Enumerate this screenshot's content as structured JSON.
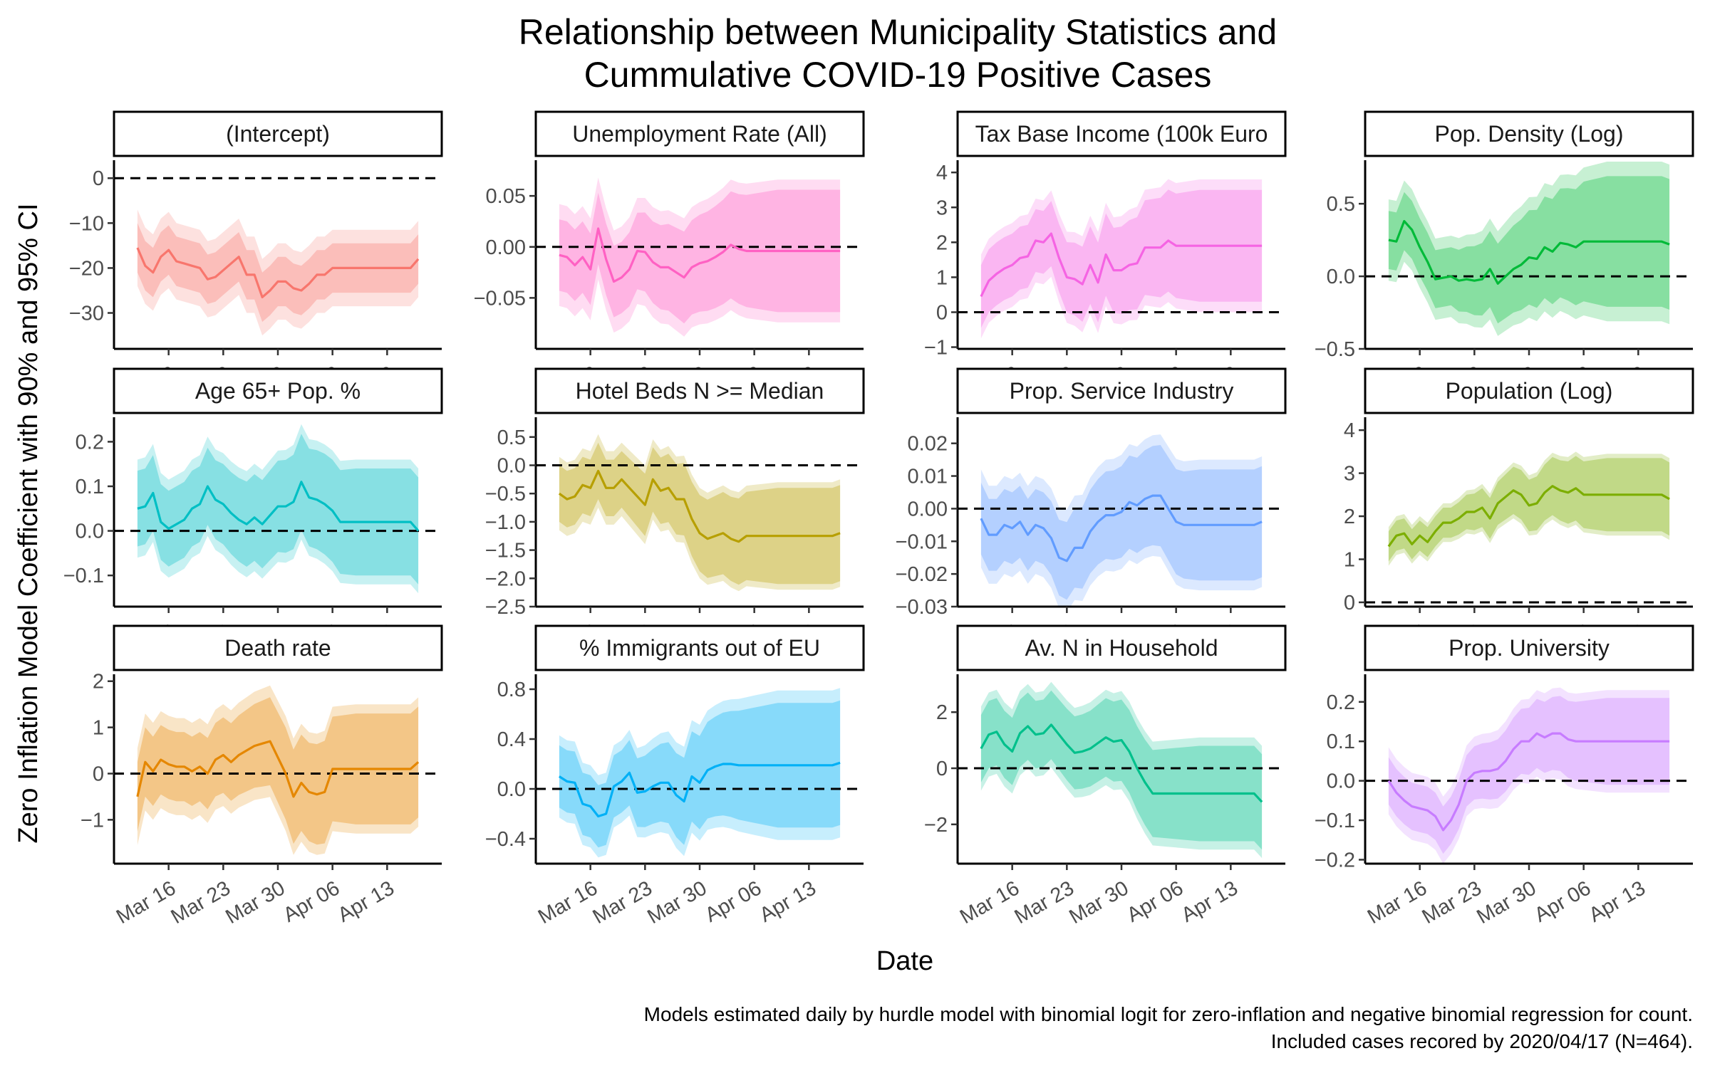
{
  "title_lines": [
    "Relationship between Municipality Statistics and",
    "Cummulative COVID-19 Positive Cases"
  ],
  "xlabel": "Date",
  "ylabel": "Zero Inflation Model Coefficient with 90% and 95% CI",
  "caption_lines": [
    "Models estimated daily by hurdle model with binomial logit for zero-inflation and negative binomial regression for count.",
    "Included cases recored by 2020/04/17 (N=464)."
  ],
  "chart_data": {
    "type": "line",
    "x_unit": "date (2020)",
    "x_ticks": [
      "Mar 16",
      "Mar 23",
      "Mar 30",
      "Apr 06",
      "Apr 13"
    ],
    "x_tick_dates": [
      "2020-03-16",
      "2020-03-23",
      "2020-03-30",
      "2020-04-06",
      "2020-04-13"
    ],
    "xlim": [
      "2020-03-09",
      "2020-04-20"
    ],
    "dates": [
      "2020-03-12",
      "2020-03-13",
      "2020-03-14",
      "2020-03-15",
      "2020-03-16",
      "2020-03-17",
      "2020-03-18",
      "2020-03-19",
      "2020-03-20",
      "2020-03-21",
      "2020-03-22",
      "2020-03-23",
      "2020-03-24",
      "2020-03-25",
      "2020-03-26",
      "2020-03-27",
      "2020-03-28",
      "2020-03-29",
      "2020-03-30",
      "2020-03-31",
      "2020-04-01",
      "2020-04-02",
      "2020-04-03",
      "2020-04-04",
      "2020-04-05",
      "2020-04-06",
      "2020-04-07",
      "2020-04-08",
      "2020-04-09",
      "2020-04-10",
      "2020-04-11",
      "2020-04-12",
      "2020-04-13",
      "2020-04-14",
      "2020-04-15",
      "2020-04-16",
      "2020-04-17"
    ],
    "reference_line": 0,
    "ci_levels": [
      "90%",
      "95%"
    ],
    "panels": [
      {
        "label": "(Intercept)",
        "color": "#F8766D",
        "ylim": [
          -38,
          4
        ],
        "yticks": [
          0,
          -10,
          -20,
          -30
        ],
        "est": [
          -15.5,
          -19.5,
          -21,
          -17.5,
          -16,
          -18.5,
          -19,
          -19.5,
          -20,
          -22.5,
          -22,
          -20.5,
          -19,
          -17.5,
          -21.5,
          -21.5,
          -26.5,
          -25,
          -23,
          -23,
          -24.5,
          -25,
          -23.5,
          -21.5,
          -21.5,
          -20,
          -20,
          -20,
          -20,
          -20,
          -20,
          -20,
          -20,
          -20,
          -20,
          -20,
          -18
        ],
        "w90": 5.5,
        "w95": 8.5
      },
      {
        "label": "Unemployment Rate (All)",
        "color": "#FF61C3",
        "ylim": [
          -0.1,
          0.085
        ],
        "yticks": [
          0.05,
          0.0,
          -0.05
        ],
        "est": [
          -0.008,
          -0.01,
          -0.018,
          -0.01,
          -0.022,
          0.018,
          -0.012,
          -0.034,
          -0.03,
          -0.022,
          -0.004,
          -0.005,
          -0.015,
          -0.02,
          -0.02,
          -0.025,
          -0.03,
          -0.02,
          -0.016,
          -0.014,
          -0.01,
          -0.005,
          0.002,
          -0.002,
          -0.004,
          -0.004,
          -0.004,
          -0.004,
          -0.004,
          -0.004,
          -0.004,
          -0.004,
          -0.004,
          -0.004,
          -0.004,
          -0.004,
          -0.004
        ],
        "w90": 0.035,
        "w95": 0.05,
        "w90_end": 0.06,
        "w95_end": 0.07
      },
      {
        "label": "Tax Base Income (100k Euro",
        "color": "#F564E3",
        "ylim": [
          -1.05,
          4.35
        ],
        "yticks": [
          4,
          3,
          2,
          1,
          0,
          -1
        ],
        "est": [
          0.45,
          0.9,
          1.1,
          1.25,
          1.35,
          1.55,
          1.6,
          2.05,
          2.0,
          2.25,
          1.55,
          1.0,
          0.95,
          0.8,
          1.35,
          0.85,
          1.65,
          1.2,
          1.2,
          1.35,
          1.4,
          1.85,
          1.85,
          1.85,
          2.05,
          1.9,
          1.9,
          1.9,
          1.9,
          1.9,
          1.9,
          1.9,
          1.9,
          1.9,
          1.9,
          1.9,
          1.9
        ],
        "w90": 0.9,
        "w95": 1.2,
        "w90_end": 1.6,
        "w95_end": 1.9
      },
      {
        "label": "Pop. Density (Log)",
        "color": "#00BA38",
        "ylim": [
          -0.5,
          0.8
        ],
        "yticks": [
          0.5,
          0.0,
          -0.5
        ],
        "est": [
          0.25,
          0.24,
          0.38,
          0.32,
          0.2,
          0.1,
          -0.02,
          -0.01,
          0.0,
          -0.03,
          -0.02,
          -0.03,
          -0.02,
          0.05,
          -0.05,
          0.0,
          0.05,
          0.08,
          0.13,
          0.12,
          0.2,
          0.17,
          0.23,
          0.22,
          0.2,
          0.24,
          0.24,
          0.24,
          0.24,
          0.24,
          0.24,
          0.24,
          0.24,
          0.24,
          0.24,
          0.24,
          0.22
        ],
        "w90": 0.2,
        "w95": 0.28,
        "w90_end": 0.45,
        "w95_end": 0.55
      },
      {
        "label": "Age 65+ Pop. %",
        "color": "#00BFC4",
        "ylim": [
          -0.17,
          0.255
        ],
        "yticks": [
          0.2,
          0.1,
          0.0,
          -0.1
        ],
        "est": [
          0.05,
          0.055,
          0.085,
          0.02,
          0.005,
          0.015,
          0.025,
          0.05,
          0.06,
          0.1,
          0.07,
          0.06,
          0.04,
          0.025,
          0.015,
          0.03,
          0.015,
          0.035,
          0.055,
          0.055,
          0.065,
          0.11,
          0.075,
          0.07,
          0.06,
          0.045,
          0.02,
          0.02,
          0.02,
          0.02,
          0.02,
          0.02,
          0.02,
          0.02,
          0.02,
          0.02,
          0.0
        ],
        "w90": 0.085,
        "w95": 0.11,
        "w90_end": 0.12,
        "w95_end": 0.14
      },
      {
        "label": "Hotel Beds N >= Median",
        "color": "#B79F00",
        "ylim": [
          -2.5,
          0.85
        ],
        "yticks": [
          0.5,
          0.0,
          -0.5,
          -1.0,
          -1.5,
          -2.0,
          -2.5
        ],
        "est": [
          -0.5,
          -0.6,
          -0.55,
          -0.35,
          -0.4,
          -0.1,
          -0.4,
          -0.4,
          -0.25,
          -0.4,
          -0.55,
          -0.7,
          -0.25,
          -0.45,
          -0.4,
          -0.6,
          -0.6,
          -0.95,
          -1.2,
          -1.3,
          -1.25,
          -1.2,
          -1.3,
          -1.35,
          -1.25,
          -1.25,
          -1.25,
          -1.25,
          -1.25,
          -1.25,
          -1.25,
          -1.25,
          -1.25,
          -1.25,
          -1.25,
          -1.25,
          -1.2
        ],
        "w90": 0.5,
        "w95": 0.65,
        "w90_end": 0.85,
        "w95_end": 0.95
      },
      {
        "label": "Prop. Service Industry",
        "color": "#619CFF",
        "ylim": [
          -0.03,
          0.028
        ],
        "yticks": [
          0.02,
          0.01,
          0.0,
          -0.01,
          -0.02,
          -0.03
        ],
        "est": [
          -0.003,
          -0.008,
          -0.008,
          -0.005,
          -0.006,
          -0.004,
          -0.008,
          -0.005,
          -0.006,
          -0.009,
          -0.015,
          -0.016,
          -0.012,
          -0.012,
          -0.007,
          -0.004,
          -0.002,
          -0.002,
          -0.001,
          0.002,
          0.001,
          0.003,
          0.004,
          0.004,
          0.0,
          -0.004,
          -0.005,
          -0.005,
          -0.005,
          -0.005,
          -0.005,
          -0.005,
          -0.005,
          -0.005,
          -0.005,
          -0.005,
          -0.004
        ],
        "w90": 0.011,
        "w95": 0.015,
        "w90_end": 0.017,
        "w95_end": 0.02
      },
      {
        "label": "Population (Log)",
        "color": "#7CAE00",
        "ylim": [
          -0.1,
          4.3
        ],
        "yticks": [
          4,
          3,
          2,
          1,
          0
        ],
        "est": [
          1.3,
          1.55,
          1.6,
          1.35,
          1.55,
          1.4,
          1.65,
          1.85,
          1.85,
          1.95,
          2.1,
          2.1,
          2.2,
          1.95,
          2.3,
          2.45,
          2.6,
          2.5,
          2.25,
          2.3,
          2.55,
          2.7,
          2.6,
          2.55,
          2.65,
          2.5,
          2.5,
          2.5,
          2.5,
          2.5,
          2.5,
          2.5,
          2.5,
          2.5,
          2.5,
          2.5,
          2.4
        ],
        "w90": 0.35,
        "w95": 0.45,
        "w90_end": 0.85,
        "w95_end": 0.95
      },
      {
        "label": "Death rate",
        "color": "#E58700",
        "ylim": [
          -1.95,
          2.15
        ],
        "yticks": [
          2,
          1,
          0,
          -1
        ],
        "est": [
          -0.5,
          0.25,
          0.05,
          0.3,
          0.2,
          0.15,
          0.15,
          0.05,
          0.15,
          0.0,
          0.3,
          0.4,
          0.25,
          0.4,
          0.5,
          0.6,
          0.65,
          0.7,
          0.35,
          0.0,
          -0.5,
          -0.2,
          -0.4,
          -0.45,
          -0.4,
          0.1,
          0.1,
          0.1,
          0.1,
          0.1,
          0.1,
          0.1,
          0.1,
          0.1,
          0.1,
          0.1,
          0.25
        ],
        "w90": 0.75,
        "w95": 1.05,
        "w90_end": 1.2,
        "w95_end": 1.4
      },
      {
        "label": "% Immigrants out of EU",
        "color": "#00B0F6",
        "ylim": [
          -0.6,
          0.92
        ],
        "yticks": [
          0.8,
          0.4,
          0.0,
          -0.4
        ],
        "est": [
          0.1,
          0.06,
          0.05,
          -0.12,
          -0.14,
          -0.22,
          -0.2,
          0.02,
          0.06,
          0.13,
          -0.03,
          -0.02,
          0.02,
          0.05,
          0.05,
          -0.05,
          -0.1,
          0.1,
          0.05,
          0.15,
          0.18,
          0.2,
          0.2,
          0.19,
          0.19,
          0.19,
          0.19,
          0.19,
          0.19,
          0.19,
          0.19,
          0.19,
          0.19,
          0.19,
          0.19,
          0.19,
          0.21
        ],
        "w90": 0.25,
        "w95": 0.33,
        "w90_end": 0.5,
        "w95_end": 0.6
      },
      {
        "label": "Av. N in Household",
        "color": "#00C08B",
        "ylim": [
          -3.4,
          3.35
        ],
        "yticks": [
          2,
          0,
          -2
        ],
        "est": [
          0.7,
          1.2,
          1.3,
          0.85,
          0.6,
          1.25,
          1.5,
          1.2,
          1.25,
          1.55,
          1.2,
          0.85,
          0.55,
          0.6,
          0.7,
          0.9,
          1.1,
          0.95,
          1.0,
          0.6,
          0.0,
          -0.5,
          -0.9,
          -0.9,
          -0.9,
          -0.9,
          -0.9,
          -0.9,
          -0.9,
          -0.9,
          -0.9,
          -0.9,
          -0.9,
          -0.9,
          -0.9,
          -0.9,
          -1.2
        ],
        "w90": 1.2,
        "w95": 1.5,
        "w90_end": 1.7,
        "w95_end": 2.0
      },
      {
        "label": "Prop. University",
        "color": "#C77CFF",
        "ylim": [
          -0.21,
          0.27
        ],
        "yticks": [
          0.2,
          0.1,
          0.0,
          -0.1,
          -0.2
        ],
        "est": [
          0.0,
          -0.03,
          -0.05,
          -0.065,
          -0.07,
          -0.075,
          -0.09,
          -0.125,
          -0.1,
          -0.06,
          0.0,
          0.02,
          0.025,
          0.025,
          0.03,
          0.05,
          0.08,
          0.1,
          0.1,
          0.12,
          0.11,
          0.12,
          0.12,
          0.105,
          0.1,
          0.1,
          0.1,
          0.1,
          0.1,
          0.1,
          0.1,
          0.1,
          0.1,
          0.1,
          0.1,
          0.1,
          0.1
        ],
        "w90": 0.06,
        "w95": 0.085,
        "w90_end": 0.11,
        "w95_end": 0.13
      }
    ]
  }
}
